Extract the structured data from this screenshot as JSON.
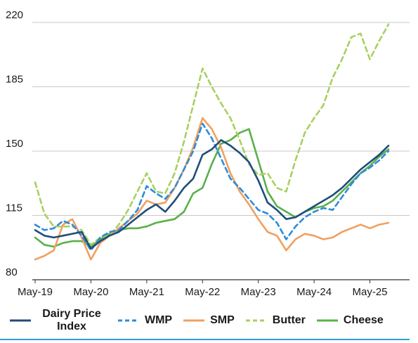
{
  "chart_data": {
    "type": "line",
    "title": "",
    "xlabel": "",
    "ylabel": "",
    "ylim": [
      80,
      220
    ],
    "yticks": [
      80,
      115,
      150,
      185,
      220
    ],
    "xticks": [
      "May-19",
      "May-20",
      "May-21",
      "May-22",
      "May-23",
      "May-24",
      "May-25"
    ],
    "x_unit": "months since May-19",
    "grid": "horizontal",
    "legend_position": "bottom",
    "series": [
      {
        "name": "Dairy Price Index",
        "color": "#1f4e79",
        "dash": "solid",
        "points": [
          [
            0,
            107
          ],
          [
            2,
            104
          ],
          [
            4,
            103
          ],
          [
            6,
            104
          ],
          [
            8,
            105
          ],
          [
            10,
            106
          ],
          [
            12,
            97
          ],
          [
            14,
            101
          ],
          [
            16,
            104
          ],
          [
            18,
            106
          ],
          [
            20,
            110
          ],
          [
            22,
            114
          ],
          [
            24,
            118
          ],
          [
            26,
            121
          ],
          [
            28,
            117
          ],
          [
            30,
            123
          ],
          [
            32,
            130
          ],
          [
            34,
            135
          ],
          [
            36,
            148
          ],
          [
            38,
            151
          ],
          [
            40,
            156
          ],
          [
            42,
            153
          ],
          [
            44,
            149
          ],
          [
            46,
            144
          ],
          [
            48,
            134
          ],
          [
            50,
            122
          ],
          [
            52,
            118
          ],
          [
            54,
            113
          ],
          [
            56,
            114
          ],
          [
            58,
            117
          ],
          [
            60,
            120
          ],
          [
            62,
            123
          ],
          [
            64,
            126
          ],
          [
            66,
            130
          ],
          [
            68,
            135
          ],
          [
            70,
            140
          ],
          [
            72,
            144
          ],
          [
            74,
            148
          ],
          [
            76,
            153
          ]
        ]
      },
      {
        "name": "WMP",
        "color": "#2e8bd8",
        "dash": "dashed",
        "points": [
          [
            0,
            110
          ],
          [
            2,
            107
          ],
          [
            4,
            108
          ],
          [
            6,
            112
          ],
          [
            8,
            110
          ],
          [
            10,
            104
          ],
          [
            12,
            96
          ],
          [
            14,
            103
          ],
          [
            16,
            106
          ],
          [
            18,
            107
          ],
          [
            20,
            112
          ],
          [
            22,
            118
          ],
          [
            24,
            131
          ],
          [
            26,
            127
          ],
          [
            28,
            124
          ],
          [
            30,
            130
          ],
          [
            32,
            140
          ],
          [
            34,
            150
          ],
          [
            36,
            165
          ],
          [
            38,
            157
          ],
          [
            40,
            146
          ],
          [
            42,
            135
          ],
          [
            44,
            130
          ],
          [
            46,
            124
          ],
          [
            48,
            118
          ],
          [
            50,
            116
          ],
          [
            52,
            111
          ],
          [
            54,
            102
          ],
          [
            56,
            109
          ],
          [
            58,
            114
          ],
          [
            60,
            117
          ],
          [
            62,
            119
          ],
          [
            64,
            118
          ],
          [
            66,
            125
          ],
          [
            68,
            132
          ],
          [
            70,
            138
          ],
          [
            72,
            141
          ],
          [
            74,
            145
          ],
          [
            76,
            150
          ]
        ]
      },
      {
        "name": "SMP",
        "color": "#f0a060",
        "dash": "solid",
        "points": [
          [
            0,
            91
          ],
          [
            2,
            93
          ],
          [
            4,
            96
          ],
          [
            6,
            110
          ],
          [
            8,
            113
          ],
          [
            10,
            103
          ],
          [
            12,
            91
          ],
          [
            14,
            100
          ],
          [
            16,
            104
          ],
          [
            18,
            108
          ],
          [
            20,
            112
          ],
          [
            22,
            116
          ],
          [
            24,
            123
          ],
          [
            26,
            121
          ],
          [
            28,
            122
          ],
          [
            30,
            130
          ],
          [
            32,
            140
          ],
          [
            34,
            152
          ],
          [
            36,
            168
          ],
          [
            38,
            162
          ],
          [
            40,
            152
          ],
          [
            42,
            138
          ],
          [
            44,
            128
          ],
          [
            46,
            121
          ],
          [
            48,
            113
          ],
          [
            50,
            106
          ],
          [
            52,
            104
          ],
          [
            54,
            96
          ],
          [
            56,
            102
          ],
          [
            58,
            105
          ],
          [
            60,
            104
          ],
          [
            62,
            102
          ],
          [
            64,
            103
          ],
          [
            66,
            106
          ],
          [
            68,
            108
          ],
          [
            70,
            110
          ],
          [
            72,
            108
          ],
          [
            74,
            110
          ],
          [
            76,
            111
          ]
        ]
      },
      {
        "name": "Butter",
        "color": "#a8d060",
        "dash": "dashed",
        "points": [
          [
            0,
            133
          ],
          [
            2,
            116
          ],
          [
            4,
            109
          ],
          [
            6,
            109
          ],
          [
            8,
            109
          ],
          [
            10,
            107
          ],
          [
            12,
            99
          ],
          [
            14,
            103
          ],
          [
            16,
            104
          ],
          [
            18,
            110
          ],
          [
            20,
            118
          ],
          [
            22,
            128
          ],
          [
            24,
            138
          ],
          [
            26,
            128
          ],
          [
            28,
            127
          ],
          [
            30,
            138
          ],
          [
            32,
            155
          ],
          [
            34,
            175
          ],
          [
            36,
            195
          ],
          [
            38,
            185
          ],
          [
            40,
            176
          ],
          [
            42,
            168
          ],
          [
            44,
            156
          ],
          [
            46,
            143
          ],
          [
            48,
            137
          ],
          [
            50,
            138
          ],
          [
            52,
            130
          ],
          [
            54,
            128
          ],
          [
            56,
            145
          ],
          [
            58,
            160
          ],
          [
            60,
            168
          ],
          [
            62,
            175
          ],
          [
            64,
            190
          ],
          [
            66,
            200
          ],
          [
            68,
            212
          ],
          [
            70,
            214
          ],
          [
            72,
            200
          ],
          [
            74,
            210
          ],
          [
            76,
            219
          ]
        ]
      },
      {
        "name": "Cheese",
        "color": "#5ab04a",
        "dash": "solid",
        "points": [
          [
            0,
            103
          ],
          [
            2,
            99
          ],
          [
            4,
            98
          ],
          [
            6,
            100
          ],
          [
            8,
            101
          ],
          [
            10,
            101
          ],
          [
            12,
            98
          ],
          [
            14,
            102
          ],
          [
            16,
            105
          ],
          [
            18,
            107
          ],
          [
            20,
            108
          ],
          [
            22,
            108
          ],
          [
            24,
            109
          ],
          [
            26,
            111
          ],
          [
            28,
            112
          ],
          [
            30,
            113
          ],
          [
            32,
            117
          ],
          [
            34,
            127
          ],
          [
            36,
            130
          ],
          [
            38,
            143
          ],
          [
            40,
            154
          ],
          [
            42,
            156
          ],
          [
            44,
            160
          ],
          [
            46,
            162
          ],
          [
            48,
            145
          ],
          [
            50,
            128
          ],
          [
            52,
            120
          ],
          [
            54,
            117
          ],
          [
            56,
            114
          ],
          [
            58,
            117
          ],
          [
            60,
            119
          ],
          [
            62,
            120
          ],
          [
            64,
            123
          ],
          [
            66,
            128
          ],
          [
            68,
            133
          ],
          [
            70,
            138
          ],
          [
            72,
            142
          ],
          [
            74,
            147
          ],
          [
            76,
            151
          ]
        ]
      }
    ]
  },
  "legend": [
    {
      "label": "Dairy Price Index",
      "color": "#1f4e79",
      "dash": "solid"
    },
    {
      "label": "WMP",
      "color": "#2e8bd8",
      "dash": "dashed"
    },
    {
      "label": "SMP",
      "color": "#f0a060",
      "dash": "solid"
    },
    {
      "label": "Butter",
      "color": "#a8d060",
      "dash": "dashed"
    },
    {
      "label": "Cheese",
      "color": "#5ab04a",
      "dash": "solid"
    }
  ]
}
